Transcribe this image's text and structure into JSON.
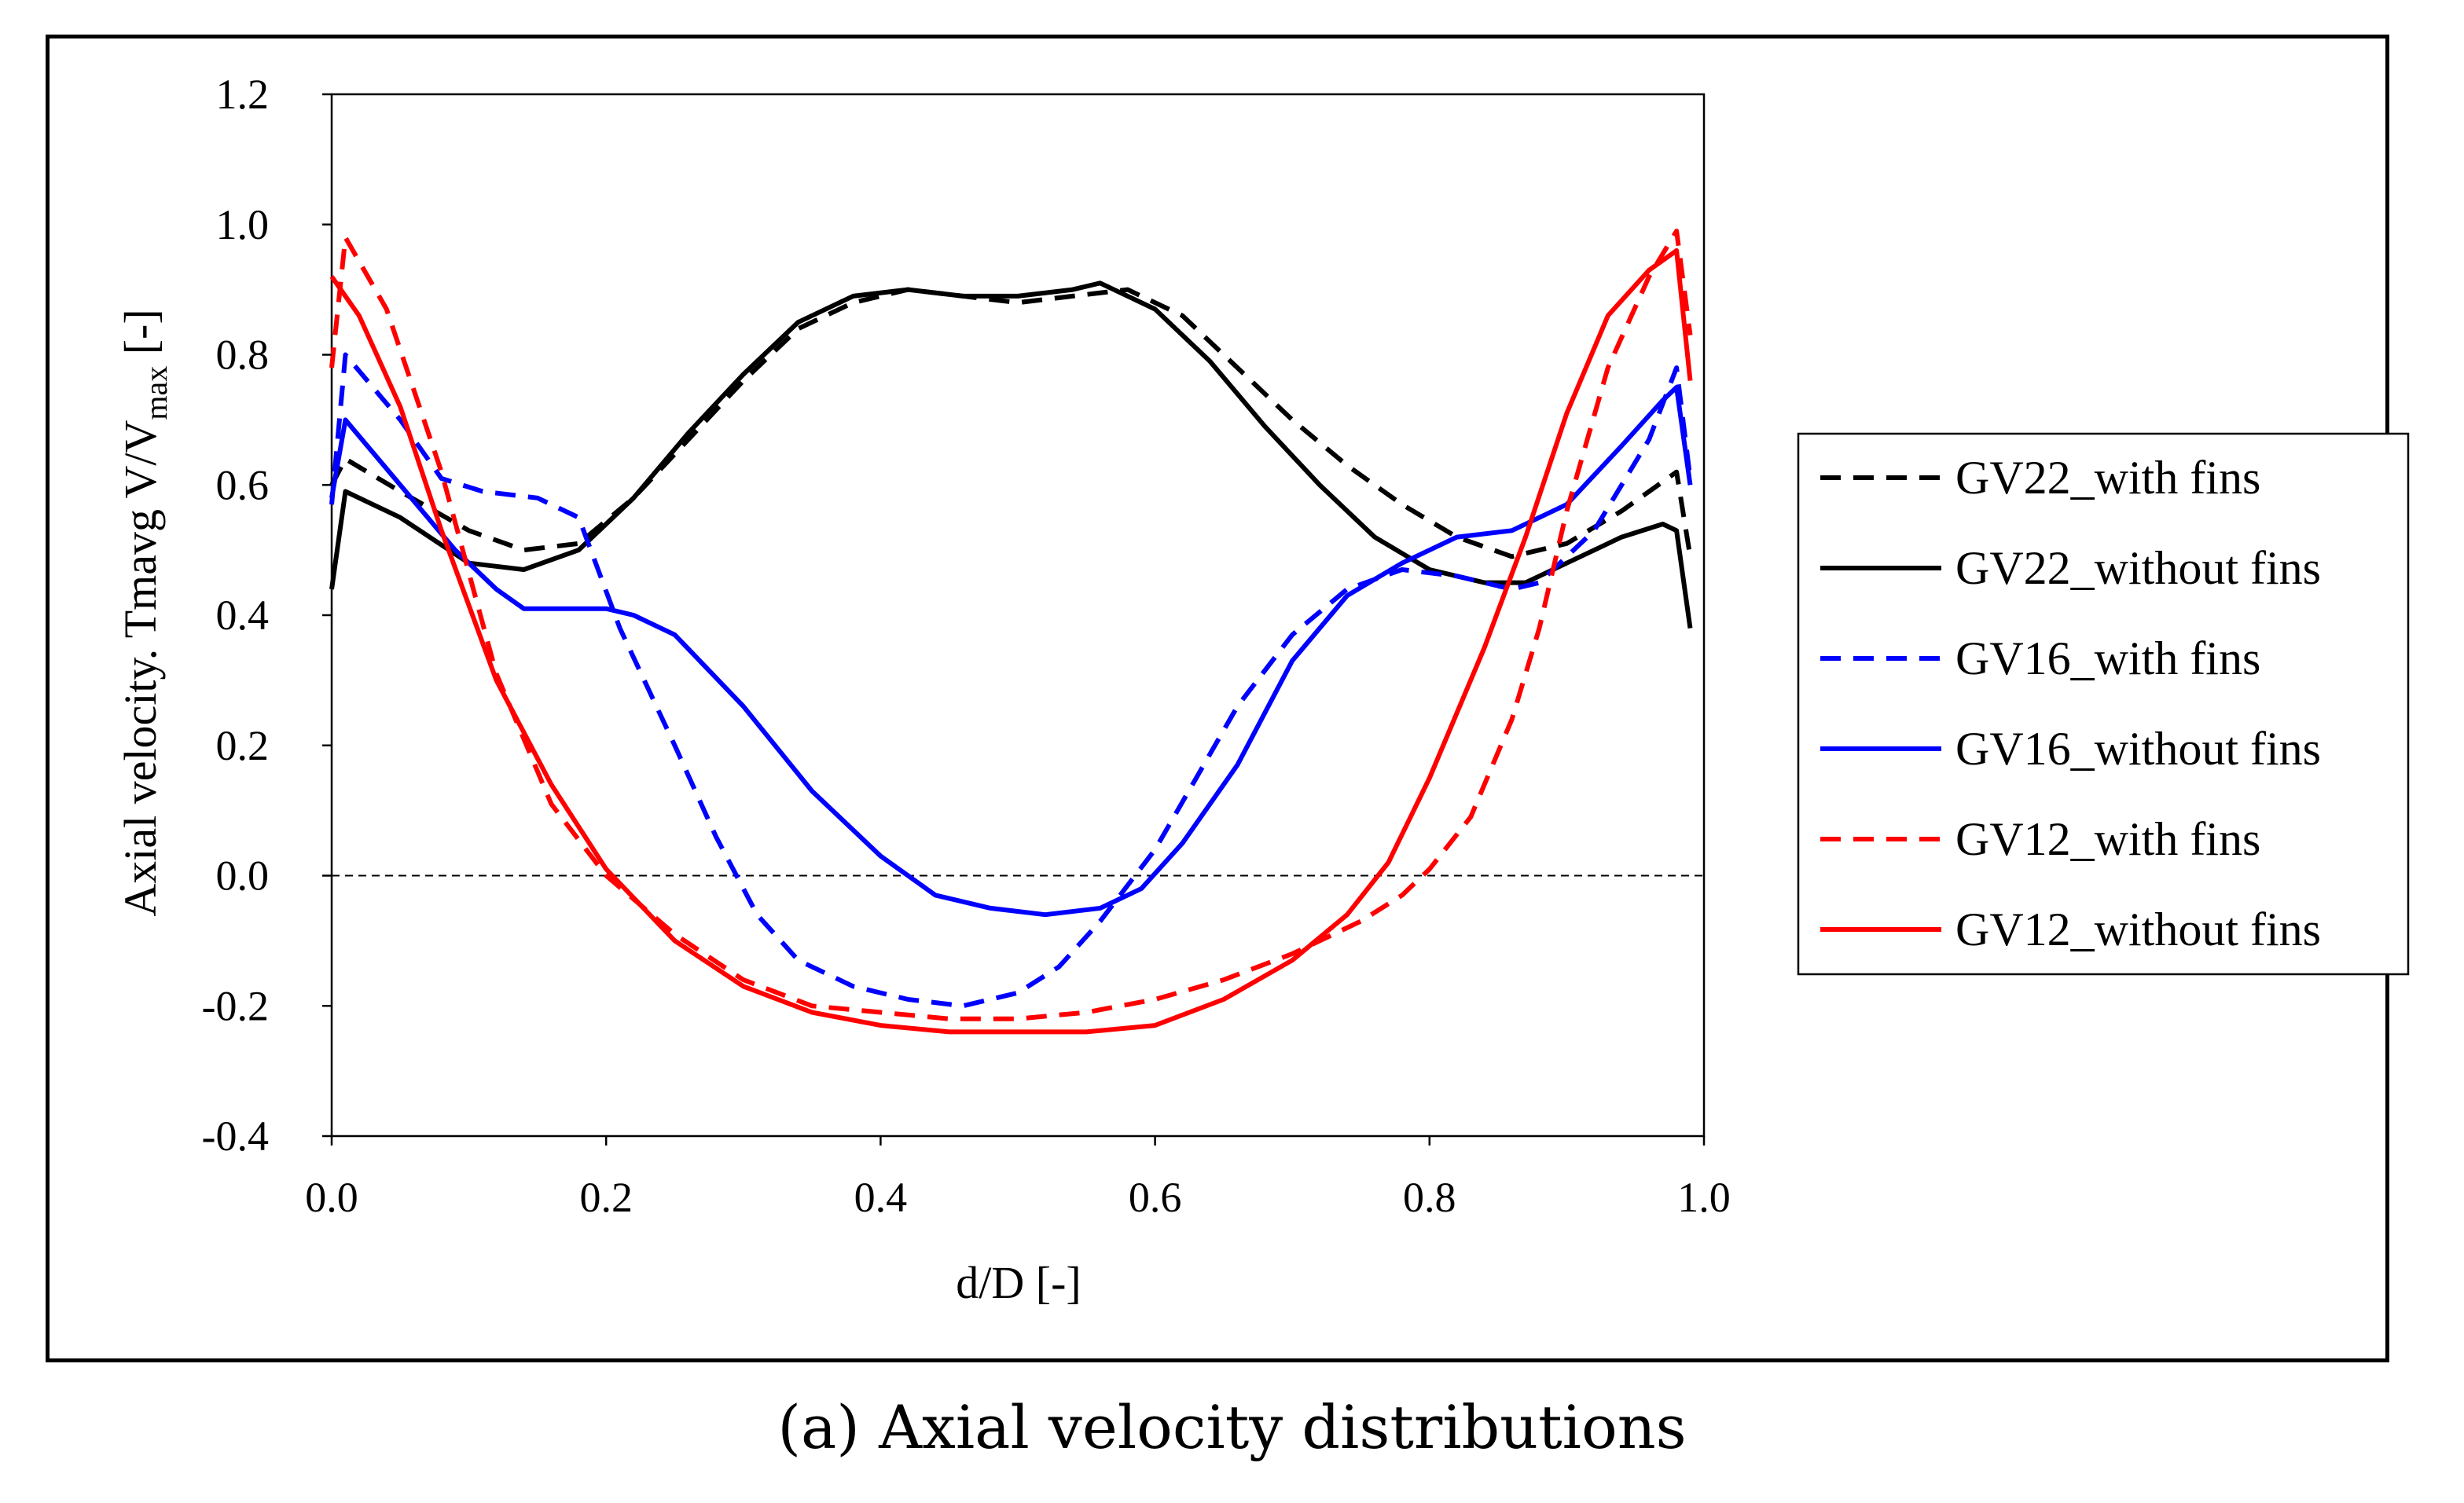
{
  "caption": "(a) Axial velocity distributions",
  "colors": {
    "black": "#000000",
    "blue": "#0000ff",
    "red": "#ff0000"
  },
  "chart_data": {
    "type": "line",
    "xlabel": "d/D [-]",
    "ylabel_main": "Axial velocity. Tmavg V/V",
    "ylabel_sub": "max",
    "ylabel_tail": " [-]",
    "xlim": [
      0.0,
      1.0
    ],
    "ylim": [
      -0.4,
      1.2
    ],
    "x_ticks": [
      "0.0",
      "0.2",
      "0.4",
      "0.6",
      "0.8",
      "1.0"
    ],
    "y_ticks": [
      "-0.4",
      "-0.2",
      "0.0",
      "0.2",
      "0.4",
      "0.6",
      "0.8",
      "1.0",
      "1.2"
    ],
    "grid": false,
    "zero_line": true,
    "legend_position": "right",
    "series": [
      {
        "name": "GV22_with fins",
        "color": "black",
        "dash": true,
        "x": [
          0.0,
          0.01,
          0.05,
          0.1,
          0.14,
          0.18,
          0.22,
          0.26,
          0.3,
          0.34,
          0.38,
          0.42,
          0.46,
          0.5,
          0.54,
          0.58,
          0.62,
          0.66,
          0.7,
          0.74,
          0.78,
          0.82,
          0.86,
          0.9,
          0.94,
          0.98,
          0.99
        ],
        "y": [
          0.6,
          0.64,
          0.59,
          0.53,
          0.5,
          0.51,
          0.58,
          0.67,
          0.76,
          0.84,
          0.88,
          0.9,
          0.89,
          0.88,
          0.89,
          0.9,
          0.86,
          0.78,
          0.7,
          0.63,
          0.57,
          0.52,
          0.49,
          0.51,
          0.56,
          0.62,
          0.49
        ]
      },
      {
        "name": "GV22_without fins",
        "color": "black",
        "dash": false,
        "x": [
          0.0,
          0.01,
          0.05,
          0.1,
          0.14,
          0.18,
          0.22,
          0.26,
          0.3,
          0.34,
          0.38,
          0.42,
          0.46,
          0.5,
          0.54,
          0.56,
          0.6,
          0.64,
          0.68,
          0.72,
          0.76,
          0.8,
          0.84,
          0.87,
          0.9,
          0.94,
          0.97,
          0.98,
          0.99
        ],
        "y": [
          0.44,
          0.59,
          0.55,
          0.48,
          0.47,
          0.5,
          0.58,
          0.68,
          0.77,
          0.85,
          0.89,
          0.9,
          0.89,
          0.89,
          0.9,
          0.91,
          0.87,
          0.79,
          0.69,
          0.6,
          0.52,
          0.47,
          0.45,
          0.45,
          0.48,
          0.52,
          0.54,
          0.53,
          0.38
        ]
      },
      {
        "name": "GV16_with fins",
        "color": "blue",
        "dash": true,
        "x": [
          0.0,
          0.01,
          0.05,
          0.08,
          0.11,
          0.15,
          0.18,
          0.21,
          0.25,
          0.28,
          0.31,
          0.34,
          0.38,
          0.42,
          0.46,
          0.5,
          0.53,
          0.56,
          0.6,
          0.63,
          0.66,
          0.7,
          0.74,
          0.78,
          0.82,
          0.86,
          0.88,
          0.92,
          0.96,
          0.98,
          0.99
        ],
        "y": [
          0.57,
          0.8,
          0.7,
          0.61,
          0.59,
          0.58,
          0.55,
          0.38,
          0.2,
          0.06,
          -0.06,
          -0.13,
          -0.17,
          -0.19,
          -0.2,
          -0.18,
          -0.14,
          -0.07,
          0.04,
          0.15,
          0.26,
          0.37,
          0.44,
          0.47,
          0.46,
          0.44,
          0.45,
          0.53,
          0.67,
          0.78,
          0.61
        ]
      },
      {
        "name": "GV16_without fins",
        "color": "blue",
        "dash": false,
        "x": [
          0.0,
          0.01,
          0.05,
          0.09,
          0.12,
          0.14,
          0.17,
          0.2,
          0.22,
          0.25,
          0.3,
          0.35,
          0.4,
          0.44,
          0.48,
          0.52,
          0.56,
          0.59,
          0.62,
          0.66,
          0.7,
          0.74,
          0.78,
          0.82,
          0.86,
          0.9,
          0.94,
          0.97,
          0.98,
          0.99
        ],
        "y": [
          0.58,
          0.7,
          0.6,
          0.5,
          0.44,
          0.41,
          0.41,
          0.41,
          0.4,
          0.37,
          0.26,
          0.13,
          0.03,
          -0.03,
          -0.05,
          -0.06,
          -0.05,
          -0.02,
          0.05,
          0.17,
          0.33,
          0.43,
          0.48,
          0.52,
          0.53,
          0.57,
          0.66,
          0.73,
          0.75,
          0.6
        ]
      },
      {
        "name": "GV12_with fins",
        "color": "red",
        "dash": true,
        "x": [
          0.0,
          0.01,
          0.04,
          0.08,
          0.12,
          0.16,
          0.2,
          0.25,
          0.3,
          0.35,
          0.4,
          0.45,
          0.5,
          0.55,
          0.6,
          0.65,
          0.7,
          0.75,
          0.78,
          0.8,
          0.83,
          0.86,
          0.88,
          0.9,
          0.93,
          0.96,
          0.98,
          0.99
        ],
        "y": [
          0.78,
          0.98,
          0.87,
          0.62,
          0.31,
          0.11,
          0.0,
          -0.09,
          -0.16,
          -0.2,
          -0.21,
          -0.22,
          -0.22,
          -0.21,
          -0.19,
          -0.16,
          -0.12,
          -0.07,
          -0.03,
          0.01,
          0.09,
          0.24,
          0.38,
          0.56,
          0.78,
          0.92,
          0.99,
          0.83
        ]
      },
      {
        "name": "GV12_without fins",
        "color": "red",
        "dash": false,
        "x": [
          0.0,
          0.02,
          0.05,
          0.08,
          0.12,
          0.16,
          0.2,
          0.25,
          0.3,
          0.35,
          0.4,
          0.45,
          0.5,
          0.55,
          0.6,
          0.65,
          0.7,
          0.74,
          0.77,
          0.8,
          0.84,
          0.87,
          0.9,
          0.93,
          0.96,
          0.98,
          0.99
        ],
        "y": [
          0.92,
          0.86,
          0.72,
          0.53,
          0.3,
          0.14,
          0.01,
          -0.1,
          -0.17,
          -0.21,
          -0.23,
          -0.24,
          -0.24,
          -0.24,
          -0.23,
          -0.19,
          -0.13,
          -0.06,
          0.02,
          0.15,
          0.35,
          0.52,
          0.71,
          0.86,
          0.93,
          0.96,
          0.76
        ]
      }
    ]
  }
}
